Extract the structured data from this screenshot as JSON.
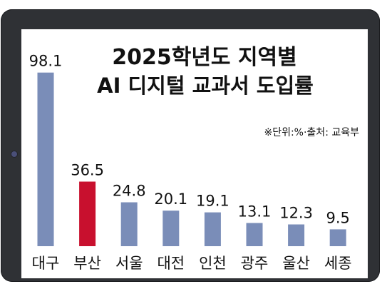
{
  "chart_data": {
    "type": "bar",
    "title": "2025학년도 지역별",
    "subtitle": "AI 디지털 교과서 도입률",
    "note": "※단위:%·출처: 교육부",
    "categories": [
      "대구",
      "부산",
      "서울",
      "대전",
      "인천",
      "광주",
      "울산",
      "세종"
    ],
    "values": [
      98.1,
      36.5,
      24.8,
      20.1,
      19.1,
      13.1,
      12.3,
      9.5
    ],
    "value_labels": [
      "98.1",
      "36.5",
      "24.8",
      "20.1",
      "19.1",
      "13.1",
      "12.3",
      "9.5"
    ],
    "highlight_index": 1,
    "colors": {
      "bar": "#7a8db8",
      "highlight": "#c8102e",
      "frame": "#2f3135",
      "camera": "#4a4f78"
    },
    "ylim": [
      0,
      100
    ],
    "grid": false,
    "legend": "none"
  }
}
